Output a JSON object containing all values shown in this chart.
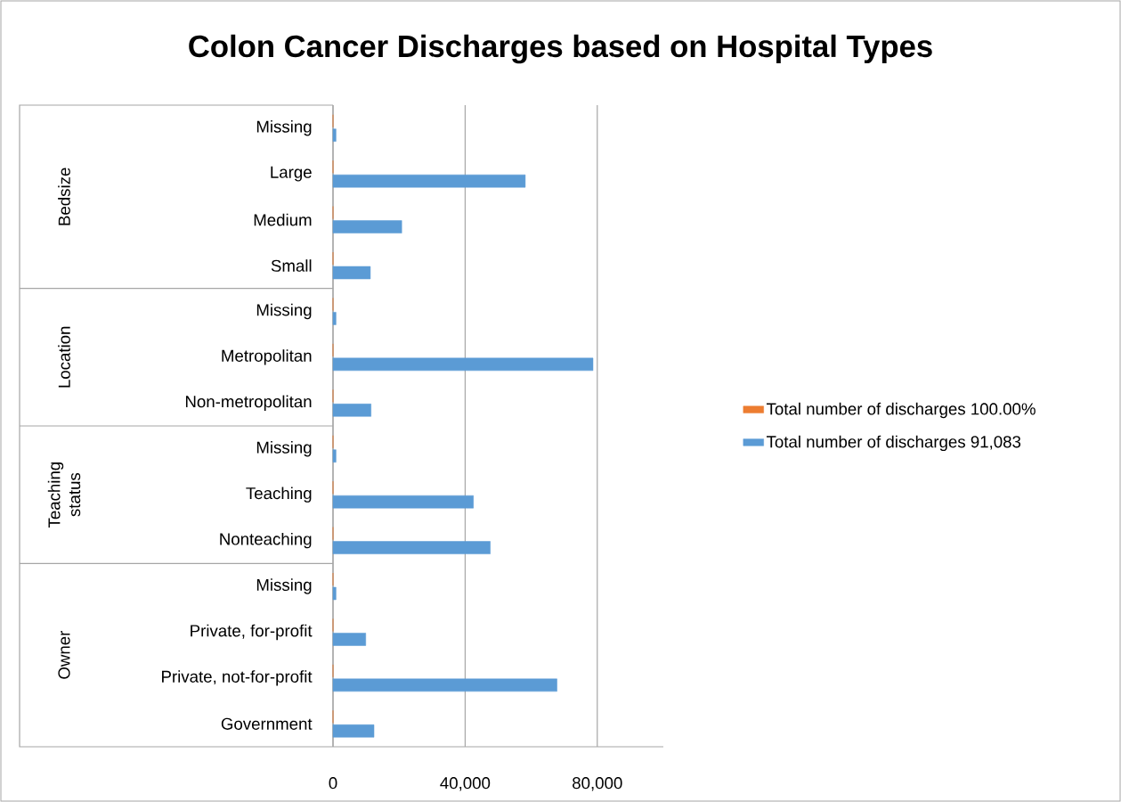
{
  "chart_data": {
    "type": "bar",
    "orientation": "horizontal",
    "title": "Colon Cancer Discharges based on Hospital Types",
    "categories": [
      "Missing",
      "Large",
      "Medium",
      "Small",
      "Missing",
      "Metropolitan",
      "Non-metropolitan",
      "Missing",
      "Teaching",
      "Nonteaching",
      "Missing",
      "Private, for-profit",
      "Private, not-for-profit",
      "Government"
    ],
    "series": [
      {
        "name": "Total number of discharges 100.00%",
        "color": "#ed7d31",
        "values": [
          0,
          0,
          0,
          0,
          0,
          0,
          0,
          0,
          0,
          0,
          0,
          0,
          0,
          0
        ]
      },
      {
        "name": "Total number of discharges 91,083",
        "color": "#5b9bd5",
        "values": [
          900,
          58200,
          20800,
          11300,
          900,
          78700,
          11500,
          900,
          42500,
          47600,
          900,
          9900,
          67800,
          12400
        ]
      }
    ],
    "xlim": [
      0,
      100000
    ],
    "xticks": [
      0,
      {
        "value": 40000,
        "label": "40,000"
      },
      {
        "value": 80000,
        "label": "80,000"
      }
    ],
    "grid": "x",
    "legend": "right",
    "annotations": [
      "Bedsize",
      "Location",
      "Teaching status",
      "Owner"
    ]
  }
}
